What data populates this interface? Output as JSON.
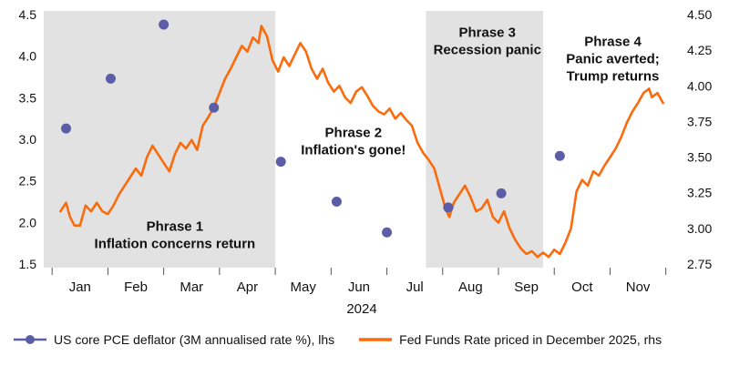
{
  "chart_data": {
    "type": "line+scatter",
    "title": "",
    "x_axis": {
      "label": "2024",
      "tick_labels": [
        "Jan",
        "Feb",
        "Mar",
        "Apr",
        "May",
        "Jun",
        "Jul",
        "Aug",
        "Sep",
        "Oct",
        "Nov"
      ],
      "range": [
        -0.15,
        11.25
      ]
    },
    "left_axis": {
      "tick_labels": [
        "1.5",
        "2.0",
        "2.5",
        "3.0",
        "3.5",
        "4.0",
        "4.5"
      ],
      "range": [
        1.5,
        4.5
      ]
    },
    "right_axis": {
      "tick_labels": [
        "2.75",
        "3.00",
        "3.25",
        "3.50",
        "3.75",
        "4.00",
        "4.25",
        "4.50"
      ],
      "range": [
        2.75,
        4.5
      ]
    },
    "grid": "off",
    "regions": [
      {
        "x0": -0.15,
        "x1": 4.0,
        "color": "#e2e2e2"
      },
      {
        "x0": 6.7,
        "x1": 8.8,
        "color": "#e2e2e2"
      }
    ],
    "annotations": [
      {
        "x": 2.2,
        "y": 1.85,
        "lines": [
          "Phrase 1",
          "Inflation concerns return"
        ]
      },
      {
        "x": 5.4,
        "y": 2.98,
        "lines": [
          "Phrase 2",
          "Inflation's gone!"
        ]
      },
      {
        "x": 7.8,
        "y": 4.18,
        "lines": [
          "Phrase 3",
          "Recession panic"
        ]
      },
      {
        "x": 10.05,
        "y": 3.97,
        "lines": [
          "Phrase 4",
          "Panic averted;",
          "Trump returns"
        ]
      }
    ],
    "series": [
      {
        "name": "US core PCE deflator (3M annualised rate %), lhs",
        "type": "scatter",
        "axis": "left",
        "color": "#5b5ea6",
        "points": [
          [
            0.25,
            3.13
          ],
          [
            1.05,
            3.73
          ],
          [
            2.0,
            4.38
          ],
          [
            2.9,
            3.38
          ],
          [
            4.1,
            2.73
          ],
          [
            5.1,
            2.25
          ],
          [
            6.0,
            1.88
          ],
          [
            7.1,
            2.18
          ],
          [
            8.05,
            2.35
          ],
          [
            9.1,
            2.8
          ]
        ]
      },
      {
        "name": "Fed Funds Rate priced in December 2025, rhs",
        "type": "line",
        "axis": "right",
        "color": "#f96b0c",
        "points": [
          [
            0.15,
            3.12
          ],
          [
            0.25,
            3.18
          ],
          [
            0.32,
            3.08
          ],
          [
            0.4,
            3.02
          ],
          [
            0.5,
            3.02
          ],
          [
            0.6,
            3.16
          ],
          [
            0.7,
            3.12
          ],
          [
            0.8,
            3.18
          ],
          [
            0.9,
            3.12
          ],
          [
            1.0,
            3.1
          ],
          [
            1.1,
            3.16
          ],
          [
            1.2,
            3.24
          ],
          [
            1.3,
            3.3
          ],
          [
            1.4,
            3.36
          ],
          [
            1.5,
            3.42
          ],
          [
            1.6,
            3.37
          ],
          [
            1.7,
            3.5
          ],
          [
            1.8,
            3.58
          ],
          [
            1.9,
            3.52
          ],
          [
            2.0,
            3.46
          ],
          [
            2.1,
            3.4
          ],
          [
            2.2,
            3.52
          ],
          [
            2.3,
            3.6
          ],
          [
            2.4,
            3.56
          ],
          [
            2.5,
            3.62
          ],
          [
            2.6,
            3.55
          ],
          [
            2.7,
            3.72
          ],
          [
            2.8,
            3.78
          ],
          [
            2.9,
            3.85
          ],
          [
            3.0,
            3.95
          ],
          [
            3.1,
            4.05
          ],
          [
            3.2,
            4.12
          ],
          [
            3.3,
            4.2
          ],
          [
            3.4,
            4.28
          ],
          [
            3.5,
            4.24
          ],
          [
            3.6,
            4.34
          ],
          [
            3.7,
            4.3
          ],
          [
            3.75,
            4.42
          ],
          [
            3.85,
            4.35
          ],
          [
            3.95,
            4.18
          ],
          [
            4.05,
            4.1
          ],
          [
            4.15,
            4.2
          ],
          [
            4.25,
            4.14
          ],
          [
            4.35,
            4.22
          ],
          [
            4.45,
            4.3
          ],
          [
            4.55,
            4.24
          ],
          [
            4.65,
            4.12
          ],
          [
            4.75,
            4.05
          ],
          [
            4.85,
            4.12
          ],
          [
            4.95,
            4.02
          ],
          [
            5.05,
            3.96
          ],
          [
            5.15,
            4.0
          ],
          [
            5.25,
            3.92
          ],
          [
            5.35,
            3.88
          ],
          [
            5.45,
            3.96
          ],
          [
            5.55,
            3.99
          ],
          [
            5.65,
            3.93
          ],
          [
            5.75,
            3.86
          ],
          [
            5.85,
            3.82
          ],
          [
            5.95,
            3.8
          ],
          [
            6.05,
            3.84
          ],
          [
            6.15,
            3.77
          ],
          [
            6.25,
            3.81
          ],
          [
            6.35,
            3.76
          ],
          [
            6.45,
            3.72
          ],
          [
            6.55,
            3.6
          ],
          [
            6.65,
            3.53
          ],
          [
            6.75,
            3.48
          ],
          [
            6.85,
            3.42
          ],
          [
            6.95,
            3.28
          ],
          [
            7.05,
            3.14
          ],
          [
            7.12,
            3.08
          ],
          [
            7.2,
            3.18
          ],
          [
            7.3,
            3.24
          ],
          [
            7.4,
            3.3
          ],
          [
            7.5,
            3.22
          ],
          [
            7.6,
            3.12
          ],
          [
            7.7,
            3.14
          ],
          [
            7.8,
            3.2
          ],
          [
            7.9,
            3.08
          ],
          [
            8.0,
            3.04
          ],
          [
            8.1,
            3.12
          ],
          [
            8.2,
            3.0
          ],
          [
            8.3,
            2.92
          ],
          [
            8.4,
            2.86
          ],
          [
            8.5,
            2.82
          ],
          [
            8.6,
            2.84
          ],
          [
            8.7,
            2.8
          ],
          [
            8.8,
            2.83
          ],
          [
            8.9,
            2.8
          ],
          [
            9.0,
            2.85
          ],
          [
            9.1,
            2.82
          ],
          [
            9.2,
            2.9
          ],
          [
            9.3,
            3.0
          ],
          [
            9.4,
            3.26
          ],
          [
            9.5,
            3.34
          ],
          [
            9.6,
            3.3
          ],
          [
            9.7,
            3.4
          ],
          [
            9.8,
            3.37
          ],
          [
            9.9,
            3.44
          ],
          [
            10.0,
            3.5
          ],
          [
            10.1,
            3.56
          ],
          [
            10.2,
            3.64
          ],
          [
            10.3,
            3.74
          ],
          [
            10.4,
            3.82
          ],
          [
            10.5,
            3.88
          ],
          [
            10.6,
            3.95
          ],
          [
            10.7,
            3.98
          ],
          [
            10.75,
            3.92
          ],
          [
            10.85,
            3.95
          ],
          [
            10.95,
            3.88
          ]
        ]
      }
    ]
  },
  "colors": {
    "pce_dots": "#5b5ea6",
    "fed_funds_line": "#f96b0c",
    "shaded_region": "#e2e2e2",
    "text": "#111111"
  }
}
